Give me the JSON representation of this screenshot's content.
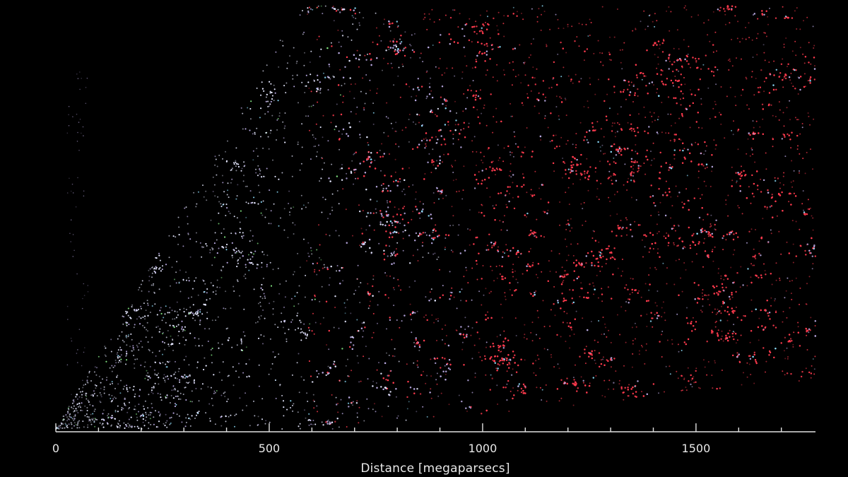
{
  "chart_data": {
    "type": "scatter",
    "title": "",
    "xlabel": "Distance [megaparsecs]",
    "ylabel": "",
    "xlim": [
      0,
      1780
    ],
    "major_ticks": [
      0,
      500,
      1000,
      1500
    ],
    "tick_labels": [
      "0",
      "500",
      "1000",
      "1500"
    ],
    "minor_tick_step": 100,
    "grid": false,
    "legend": "none",
    "colors": {
      "background": "#000000",
      "near_galaxies": "#e6e8ff",
      "mid_galaxies": "#b8a8e0",
      "far_galaxies": "#ff3b4e",
      "green_points": "#7fe07f",
      "cyan_points": "#8fe0ff",
      "axis": "#e0e0e0"
    }
  }
}
